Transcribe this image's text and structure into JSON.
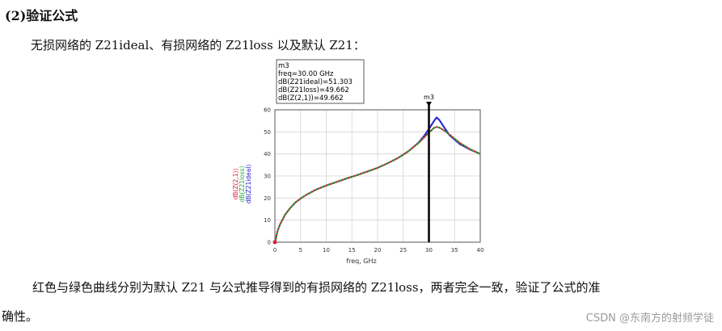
{
  "heading": "(2)验证公式",
  "intro": "无损网络的 Z21ideal、有损网络的 Z21loss 以及默认 Z21：",
  "conclusion_line1": "红色与绿色曲线分别为默认 Z21 与公式推导得到的有损网络的 Z21loss，两者完全一致，验证了公式的准",
  "conclusion_line2": "确性。",
  "watermark": "CSDN @东南方的射频学徒",
  "chart_data": {
    "type": "line",
    "xlabel": "freq, GHz",
    "ylabel_lines": [
      "dB(Z(2,1))",
      "dB(Z21loss)",
      "dB(Z21ideal)"
    ],
    "xlim": [
      0,
      40
    ],
    "ylim": [
      0,
      60
    ],
    "xticks": [
      0,
      5,
      10,
      15,
      20,
      25,
      30,
      35,
      40
    ],
    "yticks": [
      0,
      10,
      20,
      30,
      40,
      50,
      60
    ],
    "grid": true,
    "marker": {
      "name": "m3",
      "x": 30,
      "lines": [
        "m3",
        "freq=30.00 GHz",
        "dB(Z21ideal)=51.303",
        "dB(Z21loss)=49.662",
        "dB(Z(2,1))=49.662"
      ]
    },
    "series": [
      {
        "name": "dB(Z21ideal)",
        "color": "#1f1fd0",
        "x": [
          0.05,
          0.5,
          1,
          2,
          3,
          4,
          5,
          6,
          8,
          10,
          12,
          14,
          16,
          18,
          20,
          22,
          24,
          26,
          28,
          29,
          30,
          31,
          31.5,
          32,
          33,
          34,
          36,
          38,
          40
        ],
        "y": [
          0,
          5,
          8,
          12.5,
          15.5,
          18,
          19.8,
          21.3,
          23.8,
          25.7,
          27.3,
          28.9,
          30.4,
          32,
          33.7,
          35.8,
          38.2,
          41.2,
          45.2,
          48,
          51.3,
          55,
          56.5,
          55.5,
          52,
          48.5,
          44.5,
          42,
          40
        ]
      },
      {
        "name": "dB(Z21loss)",
        "color": "#22a83a",
        "x": [
          0.05,
          0.5,
          1,
          2,
          3,
          4,
          5,
          6,
          8,
          10,
          12,
          14,
          16,
          18,
          20,
          22,
          24,
          26,
          28,
          29,
          30,
          31,
          31.5,
          32,
          33,
          34,
          36,
          38,
          40
        ],
        "y": [
          0,
          5,
          8,
          12.5,
          15.5,
          18,
          19.8,
          21.3,
          23.8,
          25.7,
          27.3,
          28.9,
          30.4,
          32,
          33.7,
          35.8,
          38.2,
          41.2,
          45,
          47.3,
          49.7,
          51.8,
          52.2,
          52,
          50.6,
          48.8,
          45,
          42.2,
          40
        ]
      },
      {
        "name": "dB(Z(2,1))",
        "color": "#d8203a",
        "x": [
          0.05,
          0.5,
          1,
          2,
          3,
          4,
          5,
          6,
          8,
          10,
          12,
          14,
          16,
          18,
          20,
          22,
          24,
          26,
          28,
          29,
          30,
          31,
          31.5,
          32,
          33,
          34,
          36,
          38,
          40
        ],
        "y": [
          0,
          5,
          8,
          12.5,
          15.5,
          18,
          19.8,
          21.3,
          23.8,
          25.7,
          27.3,
          28.9,
          30.4,
          32,
          33.7,
          35.8,
          38.2,
          41.2,
          45,
          47.3,
          49.7,
          51.8,
          52.2,
          52,
          50.6,
          48.8,
          45,
          42.2,
          40
        ]
      }
    ]
  }
}
